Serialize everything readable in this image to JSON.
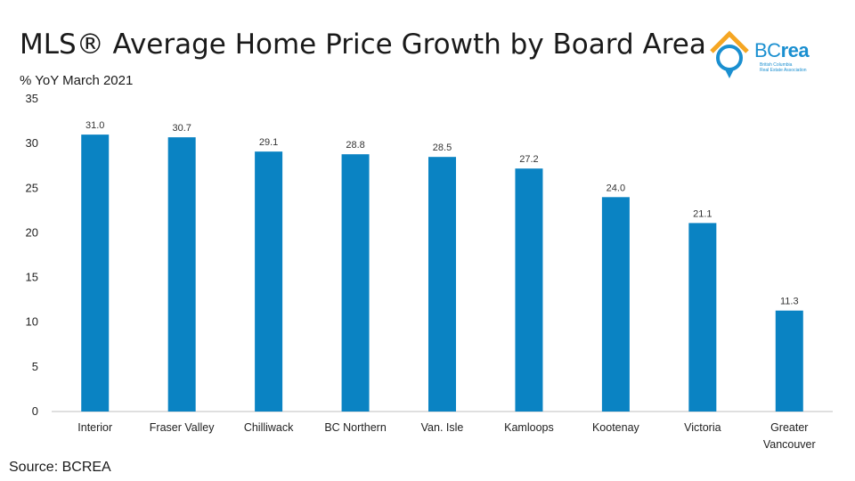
{
  "header": {
    "title": "MLS® Average Home Price Growth by Board Area",
    "subtitle": "% YoY March 2021"
  },
  "footer": {
    "source": "Source: BCREA"
  },
  "logo": {
    "name": "bcrea-logo",
    "wordmark_thin": "BC",
    "wordmark_bold": "rea",
    "tagline_1": "British Columbia",
    "tagline_2": "Real Estate Association",
    "colors": {
      "blue": "#1a8fd0",
      "orange": "#f5a623"
    }
  },
  "chart_data": {
    "type": "bar",
    "title": "MLS® Average Home Price Growth by Board Area",
    "subtitle": "% YoY March 2021",
    "categories": [
      [
        "Interior"
      ],
      [
        "Fraser Valley"
      ],
      [
        "Chilliwack"
      ],
      [
        "BC Northern"
      ],
      [
        "Van. Isle"
      ],
      [
        "Kamloops"
      ],
      [
        "Kootenay"
      ],
      [
        "Victoria"
      ],
      [
        "Greater",
        "Vancouver"
      ]
    ],
    "values": [
      31.0,
      30.7,
      29.1,
      28.8,
      28.5,
      27.2,
      24.0,
      21.1,
      11.3
    ],
    "value_labels": [
      "31.0",
      "30.7",
      "29.1",
      "28.8",
      "28.5",
      "27.2",
      "24.0",
      "21.1",
      "11.3"
    ],
    "ylim": [
      0,
      35
    ],
    "yticks": [
      0,
      5,
      10,
      15,
      20,
      25,
      30,
      35
    ],
    "grid": false,
    "legend": "none",
    "bar_color": "#0a83c3"
  }
}
